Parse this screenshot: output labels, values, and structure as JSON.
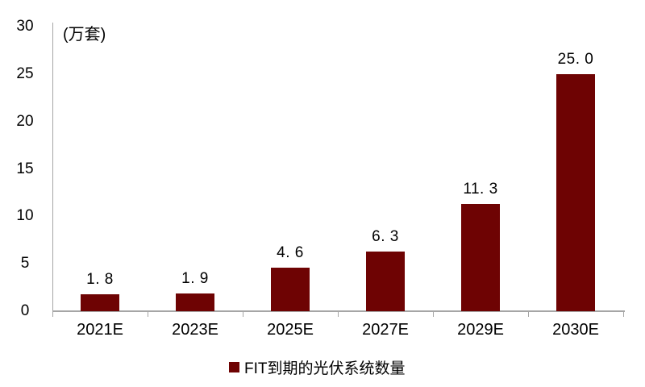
{
  "chart_data": {
    "type": "bar",
    "title": "",
    "unit_label": "(万套)",
    "categories": [
      "2021E",
      "2023E",
      "2025E",
      "2027E",
      "2029E",
      "2030E"
    ],
    "values": [
      1.8,
      1.9,
      4.6,
      6.3,
      11.3,
      25.0
    ],
    "value_labels": [
      "1. 8",
      "1. 9",
      "4. 6",
      "6. 3",
      "11. 3",
      "25. 0"
    ],
    "xlabel": "",
    "ylabel": "",
    "ylim": [
      0,
      30
    ],
    "yticks": [
      0,
      5,
      10,
      15,
      20,
      25,
      30
    ],
    "grid": false,
    "legend": {
      "label": "FIT到期的光伏系统数量",
      "position": "bottom"
    },
    "colors": {
      "bar": "#6E0303",
      "axis": "#A6A6A6",
      "text": "#000000",
      "background": "#FFFFFF"
    }
  }
}
